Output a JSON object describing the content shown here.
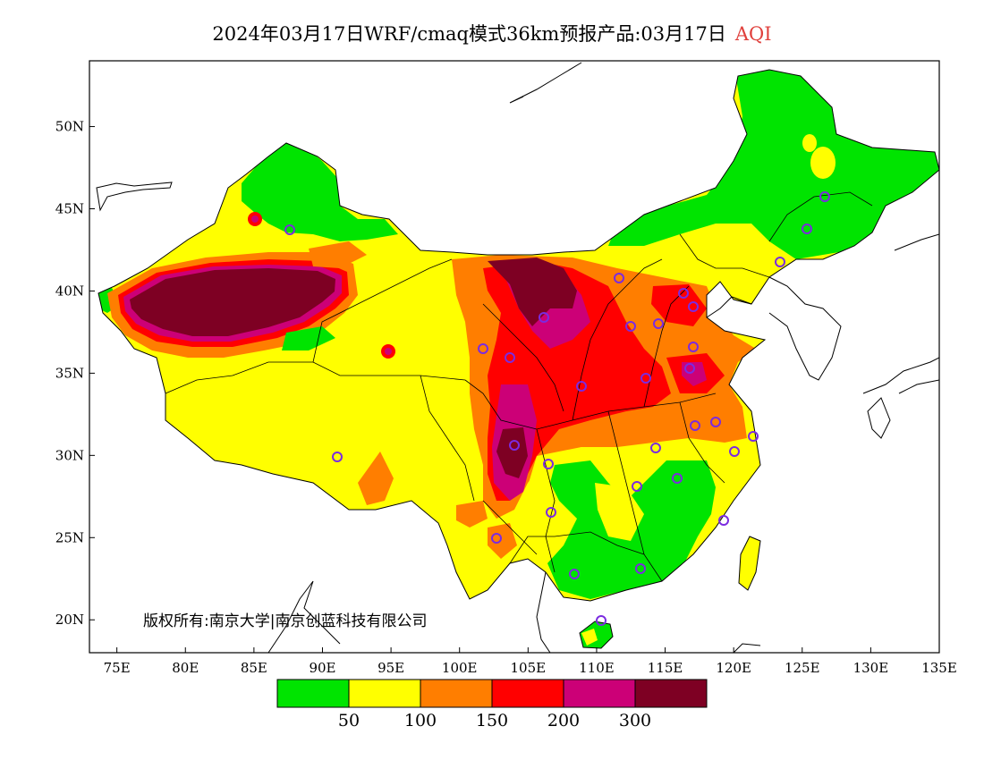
{
  "title": {
    "main": "2024年03月17日WRF/cmaq模式36km预报产品:03月17日",
    "variable": "AQI",
    "variable_color": "#e0403c"
  },
  "copyright": "版权所有:南京大学|南京创蓝科技有限公司",
  "axes": {
    "lon_range": [
      73,
      135
    ],
    "lat_range": [
      18,
      54
    ],
    "lon_ticks": [
      "75E",
      "80E",
      "85E",
      "90E",
      "95E",
      "100E",
      "105E",
      "110E",
      "115E",
      "120E",
      "125E",
      "130E",
      "135E"
    ],
    "lon_tick_values": [
      75,
      80,
      85,
      90,
      95,
      100,
      105,
      110,
      115,
      120,
      125,
      130,
      135
    ],
    "lat_ticks": [
      "20N",
      "25N",
      "30N",
      "35N",
      "40N",
      "45N",
      "50N"
    ],
    "lat_tick_values": [
      20,
      25,
      30,
      35,
      40,
      45,
      50
    ]
  },
  "legend": {
    "colors": [
      "#00e400",
      "#ffff00",
      "#ff7e00",
      "#ff0000",
      "#cc0077",
      "#7e0023"
    ],
    "labels": [
      "50",
      "100",
      "150",
      "200",
      "300"
    ]
  },
  "map_data": {
    "background_level": "#ffff00",
    "regions": [
      {
        "name": "northeast-good",
        "color": "#00e400"
      },
      {
        "name": "north-xinjiang-good",
        "color": "#00e400"
      },
      {
        "name": "taklimakan-hazardous",
        "color": "#7e0023"
      },
      {
        "name": "ordos-hazardous",
        "color": "#7e0023"
      },
      {
        "name": "sichuan-hazardous",
        "color": "#7e0023"
      },
      {
        "name": "south-china-good",
        "color": "#00e400"
      }
    ]
  }
}
